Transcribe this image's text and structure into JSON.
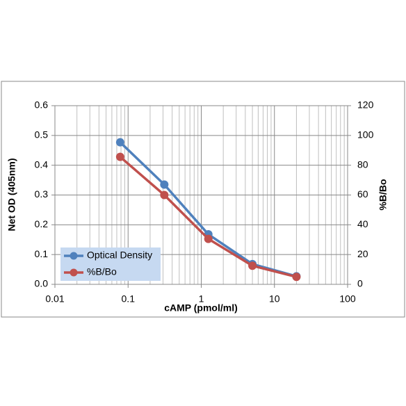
{
  "chart_data": {
    "type": "line",
    "x_label": "cAMP (pmol/ml)",
    "y_label": "Net OD (405nm)",
    "y2_label": "%B/Bo",
    "x": [
      0.078,
      0.3125,
      1.25,
      5,
      20
    ],
    "series": [
      {
        "name": "Optical Density",
        "color": "#4f81bd",
        "values": [
          0.477,
          0.335,
          0.168,
          0.068,
          0.027
        ]
      },
      {
        "name": "%B/Bo",
        "color": "#c0504d",
        "axis": "y2",
        "values": [
          85.6,
          60,
          30.5,
          12.5,
          5
        ]
      }
    ],
    "xlim": [
      0.01,
      100
    ],
    "xticks": [
      0.01,
      0.1,
      1,
      10,
      100
    ],
    "xscale": "log",
    "ylim": [
      0,
      0.6
    ],
    "yticks": [
      {
        "value": 0,
        "label": "0.0"
      },
      0.1,
      0.2,
      0.3,
      0.4,
      0.5,
      0.6
    ],
    "y2lim": [
      0,
      120
    ],
    "y2ticks": [
      0,
      20,
      40,
      60,
      80,
      100,
      120
    ],
    "grid": true,
    "legend": "lower left"
  }
}
